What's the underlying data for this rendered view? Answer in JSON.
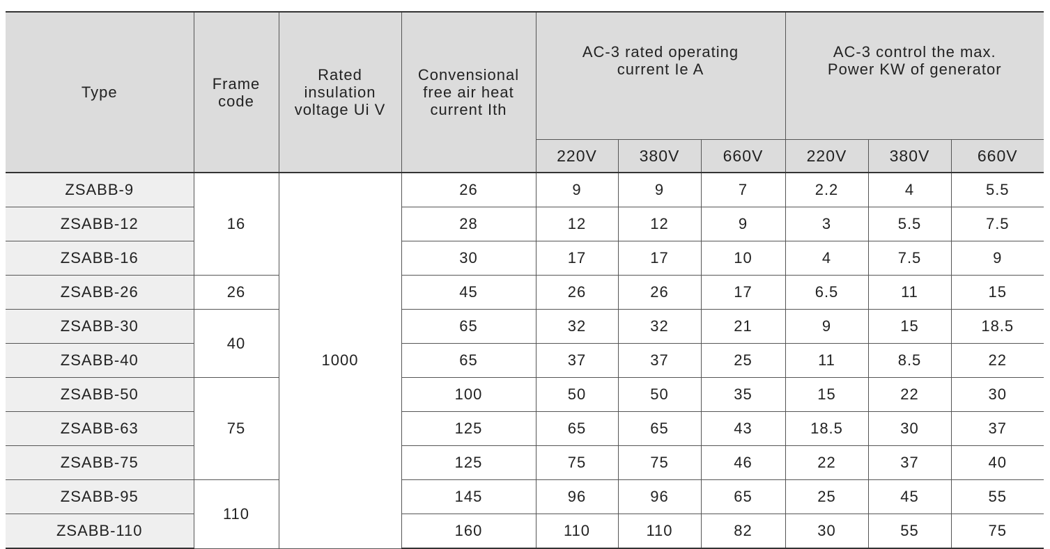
{
  "headers": {
    "type": "Type",
    "frame_code": [
      "Frame",
      "code"
    ],
    "rated_insulation": [
      "Rated",
      "insulation",
      "voltage Ui V"
    ],
    "conv_current": [
      "Convensional",
      "free air heat",
      "current Ith"
    ],
    "ac3_current": [
      "AC-3 rated operating",
      "current Ie A"
    ],
    "ac3_power": [
      "AC-3 control the max.",
      "Power KW of generator"
    ],
    "voltages": [
      "220V",
      "380V",
      "660V",
      "220V",
      "380V",
      "660V"
    ]
  },
  "frame_groups": [
    "16",
    "26",
    "40",
    "75",
    "110"
  ],
  "rated_voltage": "1000",
  "rows": [
    {
      "type": "ZSABB-9",
      "ith": "26",
      "i220": "9",
      "i380": "9",
      "i660": "7",
      "p220": "2.2",
      "p380": "4",
      "p660": "5.5"
    },
    {
      "type": "ZSABB-12",
      "ith": "28",
      "i220": "12",
      "i380": "12",
      "i660": "9",
      "p220": "3",
      "p380": "5.5",
      "p660": "7.5"
    },
    {
      "type": "ZSABB-16",
      "ith": "30",
      "i220": "17",
      "i380": "17",
      "i660": "10",
      "p220": "4",
      "p380": "7.5",
      "p660": "9"
    },
    {
      "type": "ZSABB-26",
      "ith": "45",
      "i220": "26",
      "i380": "26",
      "i660": "17",
      "p220": "6.5",
      "p380": "11",
      "p660": "15"
    },
    {
      "type": "ZSABB-30",
      "ith": "65",
      "i220": "32",
      "i380": "32",
      "i660": "21",
      "p220": "9",
      "p380": "15",
      "p660": "18.5"
    },
    {
      "type": "ZSABB-40",
      "ith": "65",
      "i220": "37",
      "i380": "37",
      "i660": "25",
      "p220": "11",
      "p380": "8.5",
      "p660": "22"
    },
    {
      "type": "ZSABB-50",
      "ith": "100",
      "i220": "50",
      "i380": "50",
      "i660": "35",
      "p220": "15",
      "p380": "22",
      "p660": "30"
    },
    {
      "type": "ZSABB-63",
      "ith": "125",
      "i220": "65",
      "i380": "65",
      "i660": "43",
      "p220": "18.5",
      "p380": "30",
      "p660": "37"
    },
    {
      "type": "ZSABB-75",
      "ith": "125",
      "i220": "75",
      "i380": "75",
      "i660": "46",
      "p220": "22",
      "p380": "37",
      "p660": "40"
    },
    {
      "type": "ZSABB-95",
      "ith": "145",
      "i220": "96",
      "i380": "96",
      "i660": "65",
      "p220": "25",
      "p380": "45",
      "p660": "55"
    },
    {
      "type": "ZSABB-110",
      "ith": "160",
      "i220": "110",
      "i380": "110",
      "i660": "82",
      "p220": "30",
      "p380": "55",
      "p660": "75"
    }
  ]
}
